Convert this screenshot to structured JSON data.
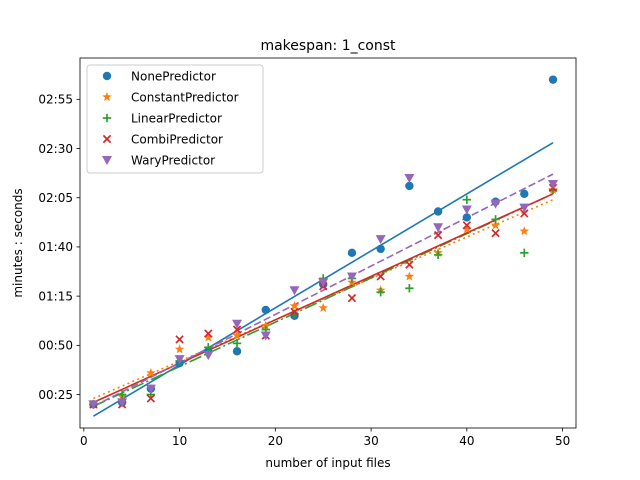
{
  "chart_data": {
    "type": "scatter",
    "title": "makespan: 1_const",
    "xlabel": "number of input files",
    "ylabel": "minutes : seconds",
    "xlim": [
      -0.4,
      51.4
    ],
    "ylim": [
      8,
      196
    ],
    "xticks": [
      0,
      10,
      20,
      30,
      40,
      50
    ],
    "yticks": [
      {
        "value": 25,
        "label": "00:25"
      },
      {
        "value": 50,
        "label": "00:50"
      },
      {
        "value": 75,
        "label": "01:15"
      },
      {
        "value": 100,
        "label": "01:40"
      },
      {
        "value": 125,
        "label": "02:05"
      },
      {
        "value": 150,
        "label": "02:30"
      },
      {
        "value": 175,
        "label": "02:55"
      }
    ],
    "legend_position": "top-left",
    "x": [
      1,
      4,
      7,
      10,
      13,
      16,
      19,
      22,
      25,
      28,
      31,
      34,
      37,
      40,
      43,
      46,
      49
    ],
    "series": [
      {
        "name": "NonePredictor",
        "marker": "circle",
        "color": "#1f77b4",
        "y": [
          20,
          21,
          28,
          41,
          47,
          47,
          68,
          65,
          81,
          97,
          99,
          131,
          118,
          115,
          123,
          127,
          185
        ],
        "fit": {
          "y_start": 14,
          "y_end": 153,
          "dash": "solid"
        }
      },
      {
        "name": "ConstantPredictor",
        "marker": "star",
        "color": "#ff7f0e",
        "y": [
          20,
          24,
          36,
          48,
          54,
          55,
          60,
          70,
          69,
          82,
          78,
          85,
          97,
          109,
          111,
          108,
          129
        ],
        "fit": {
          "y_start": 23,
          "y_end": 124,
          "dash": "dotted"
        }
      },
      {
        "name": "LinearPredictor",
        "marker": "plus",
        "color": "#2ca02c",
        "y": [
          20,
          25,
          25,
          42,
          49,
          51,
          58,
          66,
          84,
          84,
          77,
          79,
          96,
          124,
          114,
          97,
          129
        ],
        "fit": {
          "y_start": 19,
          "y_end": 127,
          "dash": "dashdot"
        }
      },
      {
        "name": "CombiPredictor",
        "marker": "x",
        "color": "#d62728",
        "y": [
          20,
          20,
          23,
          53,
          56,
          58,
          55,
          67,
          80,
          74,
          85,
          91,
          106,
          111,
          107,
          117,
          130
        ],
        "fit": {
          "y_start": 21,
          "y_end": 127,
          "dash": "solid"
        }
      },
      {
        "name": "WaryPredictor",
        "marker": "triangle-down",
        "color": "#9467bd",
        "y": [
          20,
          21,
          28,
          43,
          45,
          61,
          55,
          78,
          82,
          85,
          104,
          135,
          110,
          119,
          122,
          120,
          132
        ],
        "fit": {
          "y_start": 19,
          "y_end": 137,
          "dash": "dashed"
        }
      }
    ]
  }
}
